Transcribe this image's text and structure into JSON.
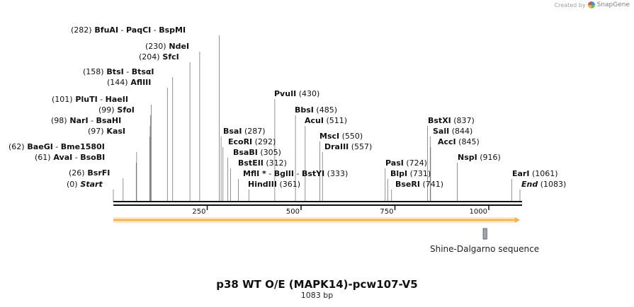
{
  "header": {
    "brand_prefix": "Created by",
    "brand_name": "SnapGene"
  },
  "map": {
    "title": "p38 WT O/E (MAPK14)-pcw107-V5",
    "subtitle": "1083 bp",
    "length_bp": 1083,
    "ticks": [
      250,
      500,
      750,
      1000
    ],
    "features": [
      {
        "label": "Shine-Dalgarno sequence",
        "start": 985,
        "end": 995,
        "color": "#9aa6b2"
      }
    ],
    "orf": {
      "start": 0,
      "end": 1083,
      "color": "#f4b24a"
    },
    "sites": [
      {
        "label": "(282)",
        "name": "BfuAI",
        "extras": [
          "PaqCI",
          "BspMI"
        ],
        "pos": 282
      },
      {
        "label": "(230)",
        "name": "NdeI",
        "extras": [],
        "pos": 230
      },
      {
        "label": "(204)",
        "name": "SfcI",
        "extras": [],
        "pos": 204
      },
      {
        "label": "(158)",
        "name": "BtsI",
        "extras": [
          "BtsαI"
        ],
        "pos": 158
      },
      {
        "label": "(144)",
        "name": "AflIII",
        "extras": [],
        "pos": 144
      },
      {
        "label": "(101)",
        "name": "PluTI",
        "extras": [
          "HaeII"
        ],
        "pos": 101
      },
      {
        "label": "(99)",
        "name": "SfoI",
        "extras": [],
        "pos": 99
      },
      {
        "label": "(98)",
        "name": "NarI",
        "extras": [
          "BsaHI"
        ],
        "pos": 98
      },
      {
        "label": "(97)",
        "name": "KasI",
        "extras": [],
        "pos": 97
      },
      {
        "label": "(62)",
        "name": "BaeGI",
        "extras": [
          "Bme1580I"
        ],
        "pos": 62
      },
      {
        "label": "(61)",
        "name": "AvaI",
        "extras": [
          "BsoBI"
        ],
        "pos": 61
      },
      {
        "label": "(26)",
        "name": "BsrFI",
        "extras": [],
        "pos": 26
      },
      {
        "label": "(0)",
        "name": "Start",
        "extras": [],
        "pos": 0,
        "italic": true
      },
      {
        "label": "(430)",
        "name": "PvuII",
        "extras": [],
        "pos": 430
      },
      {
        "label": "(485)",
        "name": "BbsI",
        "extras": [],
        "pos": 485
      },
      {
        "label": "(511)",
        "name": "AcuI",
        "extras": [],
        "pos": 511
      },
      {
        "label": "(550)",
        "name": "MscI",
        "extras": [],
        "pos": 550
      },
      {
        "label": "(557)",
        "name": "DraIII",
        "extras": [],
        "pos": 557
      },
      {
        "label": "(287)",
        "name": "BsaI",
        "extras": [],
        "pos": 287
      },
      {
        "label": "(292)",
        "name": "EcoRI",
        "extras": [],
        "pos": 292
      },
      {
        "label": "(305)",
        "name": "BsaBI",
        "extras": [],
        "pos": 305
      },
      {
        "label": "(312)",
        "name": "BstEII",
        "extras": [],
        "pos": 312
      },
      {
        "label": "(333)",
        "name": "MflI *",
        "extras": [
          "BglII",
          "BstYI"
        ],
        "pos": 333
      },
      {
        "label": "(361)",
        "name": "HindIII",
        "extras": [],
        "pos": 361
      },
      {
        "label": "(837)",
        "name": "BstXI",
        "extras": [],
        "pos": 837
      },
      {
        "label": "(844)",
        "name": "SalI",
        "extras": [],
        "pos": 844
      },
      {
        "label": "(845)",
        "name": "AccI",
        "extras": [],
        "pos": 845
      },
      {
        "label": "(724)",
        "name": "PasI",
        "extras": [],
        "pos": 724
      },
      {
        "label": "(731)",
        "name": "BlpI",
        "extras": [],
        "pos": 731
      },
      {
        "label": "(741)",
        "name": "BseRI",
        "extras": [],
        "pos": 741
      },
      {
        "label": "(916)",
        "name": "NspI",
        "extras": [],
        "pos": 916
      },
      {
        "label": "(1061)",
        "name": "EarI",
        "extras": [],
        "pos": 1061
      },
      {
        "label": "(1083)",
        "name": "End",
        "extras": [],
        "pos": 1083,
        "italic": true
      }
    ]
  }
}
